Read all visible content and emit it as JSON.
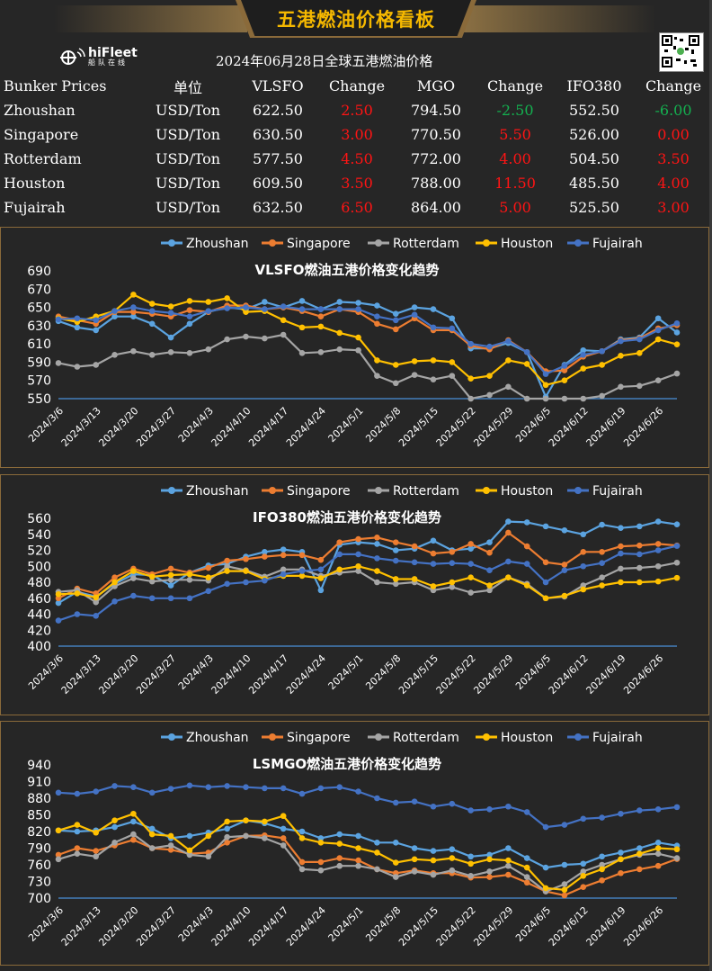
{
  "header": {
    "title": "五港燃油价格看板",
    "subtitle": "2024年06月28日全球五港燃油价格",
    "logo_en": "hiFleet",
    "logo_cn": "船队在线",
    "qr_icon": "qr-code-icon"
  },
  "colors": {
    "Zhoushan": "#5ba3e0",
    "Singapore": "#ed7d31",
    "Rotterdam": "#a5a5a5",
    "Houston": "#ffc000",
    "Fujairah": "#4472c4",
    "up": "#ff1414",
    "down": "#14b050",
    "gold": "#f5b800"
  },
  "table": {
    "headers": [
      "Bunker Prices",
      "单位",
      "VLSFO",
      "Change",
      "MGO",
      "Change",
      "IFO380",
      "Change"
    ],
    "rows": [
      {
        "port": "Zhoushan",
        "unit": "USD/Ton",
        "vlsfo": "622.50",
        "vlsfo_chg": "2.50",
        "mgo": "794.50",
        "mgo_chg": "-2.50",
        "ifo": "552.50",
        "ifo_chg": "-6.00"
      },
      {
        "port": "Singapore",
        "unit": "USD/Ton",
        "vlsfo": "630.50",
        "vlsfo_chg": "3.00",
        "mgo": "770.50",
        "mgo_chg": "5.50",
        "ifo": "526.00",
        "ifo_chg": "0.00"
      },
      {
        "port": "Rotterdam",
        "unit": "USD/Ton",
        "vlsfo": "577.50",
        "vlsfo_chg": "4.50",
        "mgo": "772.00",
        "mgo_chg": "4.00",
        "ifo": "504.50",
        "ifo_chg": "3.50"
      },
      {
        "port": "Houston",
        "unit": "USD/Ton",
        "vlsfo": "609.50",
        "vlsfo_chg": "3.50",
        "mgo": "788.00",
        "mgo_chg": "11.50",
        "ifo": "485.50",
        "ifo_chg": "4.00"
      },
      {
        "port": "Fujairah",
        "unit": "USD/Ton",
        "vlsfo": "632.50",
        "vlsfo_chg": "6.50",
        "mgo": "864.00",
        "mgo_chg": "5.00",
        "ifo": "525.50",
        "ifo_chg": "3.00"
      }
    ]
  },
  "chart_data": [
    {
      "type": "line",
      "title": "VLSFO燃油五港价格变化趋势",
      "legend_position": "top",
      "x_ticks": [
        "2024/3/6",
        "2024/3/13",
        "2024/3/20",
        "2024/3/27",
        "2024/4/3",
        "2024/4/10",
        "2024/4/17",
        "2024/4/24",
        "2024/5/1",
        "2024/5/8",
        "2024/5/15",
        "2024/5/22",
        "2024/5/29",
        "2024/6/5",
        "2024/6/12",
        "2024/6/19",
        "2024/6/26"
      ],
      "x": [
        "3/6",
        "3/9",
        "3/13",
        "3/16",
        "3/20",
        "3/23",
        "3/27",
        "3/30",
        "4/3",
        "4/6",
        "4/10",
        "4/13",
        "4/17",
        "4/20",
        "4/24",
        "4/27",
        "5/1",
        "5/4",
        "5/8",
        "5/11",
        "5/15",
        "5/18",
        "5/22",
        "5/25",
        "5/29",
        "6/1",
        "6/5",
        "6/8",
        "6/12",
        "6/15",
        "6/19",
        "6/22",
        "6/26",
        "6/28"
      ],
      "ylim": [
        550,
        690
      ],
      "y_ticks": [
        550,
        570,
        590,
        610,
        630,
        650,
        670,
        690
      ],
      "series": [
        {
          "name": "Zhoushan",
          "values": [
            635,
            628,
            625,
            640,
            640,
            632,
            617,
            632,
            645,
            650,
            648,
            656,
            650,
            657,
            648,
            656,
            655,
            652,
            643,
            650,
            648,
            638,
            605,
            605,
            611,
            601,
            552,
            587,
            603,
            602,
            615,
            617,
            638,
            622.5
          ]
        },
        {
          "name": "Singapore",
          "values": [
            640,
            636,
            632,
            645,
            645,
            643,
            640,
            647,
            645,
            652,
            652,
            648,
            650,
            646,
            640,
            648,
            645,
            632,
            626,
            638,
            625,
            625,
            608,
            604,
            614,
            601,
            580,
            581,
            596,
            602,
            614,
            616,
            627,
            630.5
          ]
        },
        {
          "name": "Rotterdam",
          "values": [
            589,
            585,
            587,
            598,
            602,
            598,
            601,
            600,
            604,
            615,
            618,
            616,
            620,
            600,
            601,
            604,
            603,
            575,
            567,
            576,
            571,
            575,
            550,
            554,
            563,
            550,
            540,
            542,
            550,
            553,
            563,
            564,
            570,
            577.5
          ]
        },
        {
          "name": "Houston",
          "values": [
            638,
            634,
            640,
            646,
            664,
            654,
            651,
            657,
            656,
            660,
            645,
            646,
            636,
            628,
            629,
            622,
            617,
            592,
            587,
            591,
            592,
            590,
            572,
            575,
            592,
            588,
            565,
            570,
            583,
            587,
            597,
            600,
            615,
            609.5
          ]
        },
        {
          "name": "Fujairah",
          "values": [
            637,
            638,
            636,
            646,
            650,
            646,
            644,
            640,
            646,
            649,
            650,
            648,
            651,
            648,
            648,
            648,
            648,
            640,
            636,
            642,
            628,
            627,
            610,
            607,
            613,
            601,
            577,
            586,
            598,
            602,
            613,
            615,
            625,
            632.5
          ]
        }
      ]
    },
    {
      "type": "line",
      "title": "IFO380燃油五港价格变化趋势",
      "legend_position": "top",
      "x_ticks": [
        "2024/3/6",
        "2024/3/13",
        "2024/3/20",
        "2024/3/27",
        "2024/4/3",
        "2024/4/10",
        "2024/4/17",
        "2024/4/24",
        "2024/5/1",
        "2024/5/8",
        "2024/5/15",
        "2024/5/22",
        "2024/5/29",
        "2024/6/5",
        "2024/6/12",
        "2024/6/19",
        "2024/6/26"
      ],
      "x": [
        "3/6",
        "3/9",
        "3/13",
        "3/16",
        "3/20",
        "3/23",
        "3/27",
        "3/30",
        "4/3",
        "4/6",
        "4/10",
        "4/13",
        "4/17",
        "4/20",
        "4/24",
        "4/27",
        "5/1",
        "5/4",
        "5/8",
        "5/11",
        "5/15",
        "5/18",
        "5/22",
        "5/25",
        "5/29",
        "6/1",
        "6/5",
        "6/8",
        "6/12",
        "6/15",
        "6/19",
        "6/22",
        "6/26",
        "6/28"
      ],
      "ylim": [
        400,
        560
      ],
      "y_ticks": [
        400,
        420,
        440,
        460,
        480,
        500,
        520,
        540,
        560
      ],
      "series": [
        {
          "name": "Zhoushan",
          "values": [
            454,
            468,
            462,
            478,
            490,
            489,
            476,
            492,
            501,
            503,
            512,
            518,
            521,
            518,
            470,
            527,
            530,
            528,
            520,
            522,
            532,
            520,
            522,
            530,
            556,
            555,
            550,
            545,
            540,
            552,
            548,
            550,
            556,
            552.5
          ]
        },
        {
          "name": "Singapore",
          "values": [
            460,
            472,
            466,
            486,
            497,
            490,
            497,
            492,
            498,
            507,
            509,
            512,
            514,
            514,
            508,
            530,
            534,
            536,
            530,
            525,
            516,
            518,
            528,
            517,
            542,
            525,
            505,
            502,
            518,
            518,
            525,
            526,
            528,
            526
          ]
        },
        {
          "name": "Rotterdam",
          "values": [
            468,
            470,
            455,
            475,
            485,
            481,
            483,
            483,
            482,
            500,
            495,
            487,
            496,
            496,
            488,
            492,
            494,
            480,
            478,
            480,
            470,
            474,
            467,
            470,
            486,
            478,
            460,
            462,
            476,
            486,
            497,
            498,
            500,
            504.5
          ]
        },
        {
          "name": "Houston",
          "values": [
            465,
            466,
            461,
            480,
            494,
            487,
            489,
            490,
            486,
            494,
            494,
            484,
            488,
            488,
            485,
            496,
            500,
            494,
            484,
            484,
            475,
            480,
            486,
            476,
            486,
            476,
            460,
            463,
            471,
            476,
            480,
            480,
            481,
            485.5
          ]
        },
        {
          "name": "Fujairah",
          "values": [
            432,
            440,
            438,
            456,
            463,
            460,
            460,
            460,
            469,
            478,
            480,
            482,
            490,
            494,
            496,
            515,
            515,
            510,
            507,
            505,
            503,
            504,
            503,
            495,
            506,
            503,
            480,
            495,
            500,
            504,
            516,
            515,
            520,
            525.5
          ]
        }
      ]
    },
    {
      "type": "line",
      "title": "LSMGO燃油五港价格变化趋势",
      "legend_position": "top",
      "x_ticks": [
        "2024/3/6",
        "2024/3/13",
        "2024/3/20",
        "2024/3/27",
        "2024/4/3",
        "2024/4/10",
        "2024/4/17",
        "2024/4/24",
        "2024/5/1",
        "2024/5/8",
        "2024/5/15",
        "2024/5/22",
        "2024/5/29",
        "2024/6/5",
        "2024/6/12",
        "2024/6/19",
        "2024/6/26"
      ],
      "x": [
        "3/6",
        "3/9",
        "3/13",
        "3/16",
        "3/20",
        "3/23",
        "3/27",
        "3/30",
        "4/3",
        "4/6",
        "4/10",
        "4/13",
        "4/17",
        "4/20",
        "4/24",
        "4/27",
        "5/1",
        "5/4",
        "5/8",
        "5/11",
        "5/15",
        "5/18",
        "5/22",
        "5/25",
        "5/29",
        "6/1",
        "6/5",
        "6/8",
        "6/12",
        "6/15",
        "6/19",
        "6/22",
        "6/26",
        "6/28"
      ],
      "ylim": [
        700,
        940
      ],
      "y_ticks": [
        700,
        730,
        760,
        790,
        820,
        850,
        880,
        910,
        940
      ],
      "series": [
        {
          "name": "Zhoushan",
          "values": [
            822,
            820,
            822,
            828,
            838,
            825,
            808,
            812,
            818,
            825,
            840,
            835,
            825,
            820,
            808,
            815,
            812,
            800,
            800,
            790,
            785,
            788,
            775,
            778,
            790,
            772,
            755,
            760,
            762,
            775,
            782,
            790,
            800,
            794.5
          ]
        },
        {
          "name": "Singapore",
          "values": [
            778,
            790,
            785,
            795,
            805,
            790,
            787,
            780,
            782,
            800,
            812,
            813,
            808,
            765,
            765,
            772,
            768,
            752,
            745,
            750,
            745,
            745,
            737,
            738,
            742,
            728,
            712,
            705,
            720,
            732,
            745,
            752,
            758,
            770.5
          ]
        },
        {
          "name": "Rotterdam",
          "values": [
            770,
            780,
            775,
            800,
            815,
            790,
            795,
            778,
            775,
            810,
            812,
            808,
            795,
            752,
            750,
            758,
            758,
            752,
            738,
            748,
            742,
            750,
            740,
            748,
            758,
            738,
            712,
            725,
            748,
            760,
            770,
            778,
            780,
            772
          ]
        },
        {
          "name": "Houston",
          "values": [
            822,
            832,
            818,
            840,
            852,
            815,
            812,
            786,
            812,
            838,
            840,
            838,
            848,
            808,
            800,
            798,
            790,
            782,
            764,
            770,
            768,
            772,
            762,
            770,
            768,
            755,
            718,
            715,
            740,
            752,
            770,
            780,
            790,
            788
          ]
        },
        {
          "name": "Fujairah",
          "values": [
            890,
            888,
            892,
            902,
            900,
            890,
            897,
            903,
            900,
            902,
            900,
            898,
            898,
            888,
            898,
            900,
            892,
            880,
            872,
            874,
            865,
            870,
            858,
            860,
            865,
            855,
            828,
            832,
            843,
            845,
            852,
            858,
            860,
            864
          ]
        }
      ]
    }
  ]
}
